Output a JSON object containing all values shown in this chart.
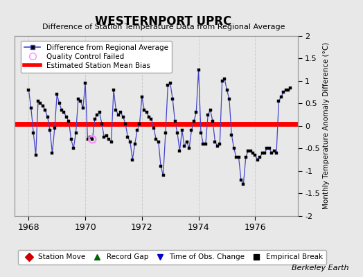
{
  "title": "WESTERNPORT UPRC",
  "subtitle": "Difference of Station Temperature Data from Regional Average",
  "ylabel_right": "Monthly Temperature Anomaly Difference (°C)",
  "credit": "Berkeley Earth",
  "ylim": [
    -2,
    2
  ],
  "yticks": [
    -2,
    -1.5,
    -1,
    -0.5,
    0,
    0.5,
    1,
    1.5,
    2
  ],
  "xlim": [
    1967.5,
    1977.5
  ],
  "xticks": [
    1968,
    1970,
    1972,
    1974,
    1976
  ],
  "bias_value": 0.05,
  "bg_color": "#e8e8e8",
  "plot_bg_color": "#e8e8e8",
  "line_color": "#4444cc",
  "marker_color": "#000000",
  "bias_color": "#ff0000",
  "qc_fail_color": "#ff88ff",
  "data_x": [
    1968.0,
    1968.083,
    1968.167,
    1968.25,
    1968.333,
    1968.417,
    1968.5,
    1968.583,
    1968.667,
    1968.75,
    1968.833,
    1968.917,
    1969.0,
    1969.083,
    1969.167,
    1969.25,
    1969.333,
    1969.417,
    1969.5,
    1969.583,
    1969.667,
    1969.75,
    1969.833,
    1969.917,
    1970.0,
    1970.083,
    1970.167,
    1970.25,
    1970.333,
    1970.417,
    1970.5,
    1970.583,
    1970.667,
    1970.75,
    1970.833,
    1970.917,
    1971.0,
    1971.083,
    1971.167,
    1971.25,
    1971.333,
    1971.417,
    1971.5,
    1971.583,
    1971.667,
    1971.75,
    1971.833,
    1971.917,
    1972.0,
    1972.083,
    1972.167,
    1972.25,
    1972.333,
    1972.417,
    1972.5,
    1972.583,
    1972.667,
    1972.75,
    1972.833,
    1972.917,
    1973.0,
    1973.083,
    1973.167,
    1973.25,
    1973.333,
    1973.417,
    1973.5,
    1973.583,
    1973.667,
    1973.75,
    1973.833,
    1973.917,
    1974.0,
    1974.083,
    1974.167,
    1974.25,
    1974.333,
    1974.417,
    1974.5,
    1974.583,
    1974.667,
    1974.75,
    1974.833,
    1974.917,
    1975.0,
    1975.083,
    1975.167,
    1975.25,
    1975.333,
    1975.417,
    1975.5,
    1975.583,
    1975.667,
    1975.75,
    1975.833,
    1975.917,
    1976.0,
    1976.083,
    1976.167,
    1976.25,
    1976.333,
    1976.417,
    1976.5,
    1976.583,
    1976.667,
    1976.75,
    1976.833,
    1976.917,
    1977.0,
    1977.083,
    1977.167,
    1977.25
  ],
  "data_y": [
    0.8,
    0.4,
    -0.15,
    -0.65,
    0.55,
    0.5,
    0.45,
    0.35,
    0.2,
    -0.1,
    -0.6,
    -0.05,
    0.7,
    0.5,
    0.35,
    0.3,
    0.2,
    0.1,
    -0.3,
    -0.5,
    -0.15,
    0.6,
    0.55,
    0.4,
    0.95,
    -0.3,
    -0.25,
    -0.3,
    0.15,
    0.25,
    0.3,
    0.05,
    -0.25,
    -0.22,
    -0.3,
    -0.35,
    0.8,
    0.35,
    0.25,
    0.3,
    0.2,
    0.05,
    -0.25,
    -0.35,
    -0.75,
    -0.4,
    -0.1,
    0.05,
    0.65,
    0.35,
    0.3,
    0.2,
    0.15,
    -0.05,
    -0.3,
    -0.35,
    -0.9,
    -1.1,
    -0.15,
    0.9,
    0.95,
    0.6,
    0.1,
    -0.15,
    -0.55,
    -0.1,
    -0.45,
    -0.35,
    -0.5,
    -0.1,
    0.1,
    0.3,
    1.25,
    -0.15,
    -0.4,
    -0.4,
    0.25,
    0.35,
    0.1,
    -0.35,
    -0.45,
    -0.4,
    1.0,
    1.05,
    0.8,
    0.6,
    -0.2,
    -0.5,
    -0.7,
    -0.7,
    -1.2,
    -1.3,
    -0.7,
    -0.55,
    -0.55,
    -0.6,
    -0.65,
    -0.75,
    -0.7,
    -0.6,
    -0.6,
    -0.5,
    -0.5,
    -0.6,
    -0.55,
    -0.6,
    0.55,
    0.65,
    0.75,
    0.8,
    0.8,
    0.85
  ],
  "qc_fail_x": [
    1970.25
  ],
  "qc_fail_y": [
    -0.3
  ],
  "legend1_labels": [
    "Difference from Regional Average",
    "Quality Control Failed",
    "Estimated Station Mean Bias"
  ],
  "legend2_labels": [
    "Station Move",
    "Record Gap",
    "Time of Obs. Change",
    "Empirical Break"
  ],
  "legend2_colors": [
    "#cc0000",
    "#006600",
    "#0000cc",
    "#000000"
  ],
  "legend2_markers": [
    "D",
    "^",
    "v",
    "s"
  ]
}
